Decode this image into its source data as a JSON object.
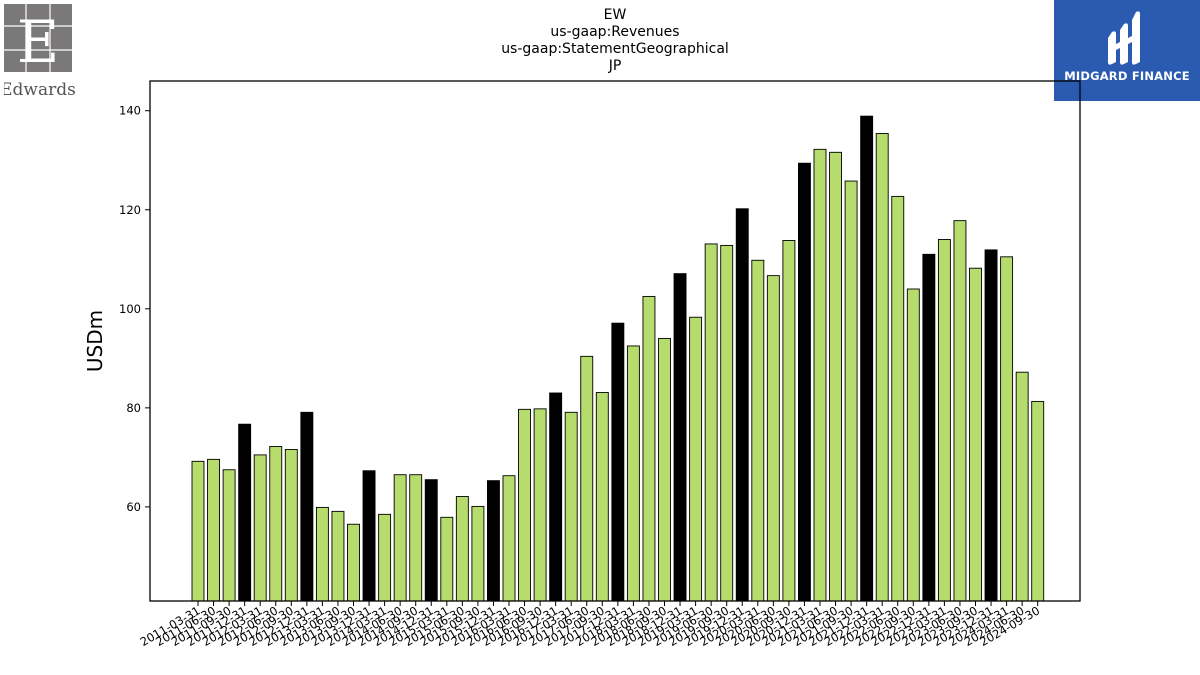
{
  "header": {
    "title_lines": [
      "EW",
      "us-gaap:Revenues",
      "us-gaap:StatementGeographical",
      "JP"
    ]
  },
  "logos": {
    "left_brand": "Edwards",
    "right_brand": "MIDGARD FINANCE",
    "right_brand_color": "#2a5bb0"
  },
  "chart_data": {
    "type": "bar",
    "ylabel": "USDm",
    "xlabel": "",
    "ylim": [
      41,
      146
    ],
    "yticks": [
      60,
      80,
      100,
      120,
      140
    ],
    "grid": false,
    "colors": {
      "quarter": "#b5dc6c",
      "year_end": "#000000",
      "edge": "#000000"
    },
    "categories": [
      "2011-03-31",
      "2011-06-30",
      "2011-09-30",
      "2011-12-31",
      "2012-03-31",
      "2012-06-30",
      "2012-09-30",
      "2012-12-31",
      "2013-03-31",
      "2013-06-30",
      "2013-09-30",
      "2013-12-31",
      "2014-03-31",
      "2014-06-30",
      "2014-09-30",
      "2014-12-31",
      "2015-03-31",
      "2015-06-30",
      "2015-09-30",
      "2015-12-31",
      "2016-03-31",
      "2016-06-30",
      "2016-09-30",
      "2016-12-31",
      "2017-03-31",
      "2017-06-30",
      "2017-09-30",
      "2017-12-31",
      "2018-03-31",
      "2018-06-30",
      "2018-09-30",
      "2018-12-31",
      "2019-03-31",
      "2019-06-30",
      "2019-09-30",
      "2019-12-31",
      "2020-03-31",
      "2020-06-30",
      "2020-09-30",
      "2020-12-31",
      "2021-03-31",
      "2021-06-30",
      "2021-09-30",
      "2021-12-31",
      "2022-03-31",
      "2022-06-30",
      "2022-09-30",
      "2022-12-31",
      "2023-03-31",
      "2023-06-30",
      "2023-09-30",
      "2023-12-31",
      "2024-03-31",
      "2024-06-30",
      "2024-09-30"
    ],
    "values": [
      69.2,
      69.6,
      67.5,
      76.7,
      70.5,
      72.2,
      71.6,
      79.1,
      59.9,
      59.1,
      56.5,
      67.3,
      58.5,
      66.5,
      66.5,
      65.5,
      57.9,
      62.1,
      60.1,
      65.3,
      66.3,
      79.7,
      79.8,
      83.0,
      79.1,
      90.4,
      83.1,
      97.1,
      92.5,
      102.5,
      94.0,
      107.1,
      98.3,
      113.1,
      112.8,
      120.2,
      109.8,
      106.7,
      113.8,
      129.4,
      132.2,
      131.6,
      125.8,
      138.9,
      135.4,
      122.7,
      104.0,
      111.0,
      114.0,
      117.8,
      108.2,
      111.9,
      110.5,
      87.2,
      81.3
    ],
    "year_end_flags": [
      0,
      0,
      0,
      1,
      0,
      0,
      0,
      1,
      0,
      0,
      0,
      1,
      0,
      0,
      0,
      1,
      0,
      0,
      0,
      1,
      0,
      0,
      0,
      1,
      0,
      0,
      0,
      1,
      0,
      0,
      0,
      1,
      0,
      0,
      0,
      1,
      0,
      0,
      0,
      1,
      0,
      0,
      0,
      1,
      0,
      0,
      0,
      1,
      0,
      0,
      0,
      1,
      0,
      0,
      0
    ]
  }
}
